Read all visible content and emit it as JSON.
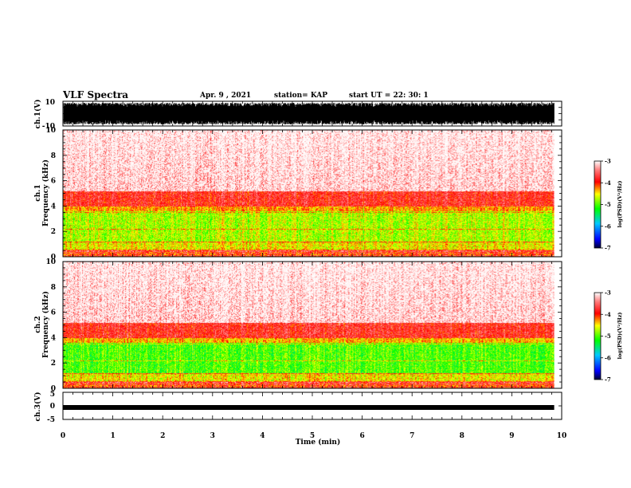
{
  "header": {
    "title": "VLF Spectra",
    "date": "Apr. 9  , 2021",
    "station": "station= KAP",
    "start": "start  UT  =    22: 30: 1"
  },
  "chart_data": [
    {
      "name": "ch1-waveform",
      "type": "line",
      "ylabel": "ch.1(V)",
      "ylim": [
        -10,
        10
      ],
      "yticks": [
        "10",
        "-10"
      ],
      "xlim": [
        0,
        10
      ]
    },
    {
      "name": "ch1-spectrogram",
      "type": "heatmap",
      "ylabel": "ch.1\nFrequency  (kHz)",
      "ylim": [
        0,
        10
      ],
      "yticks": [
        "0",
        "2",
        "4",
        "6",
        "8",
        "10"
      ],
      "xlim": [
        0,
        10
      ],
      "data_until_min": 9.85,
      "colorbar": {
        "label": "log(PSD)(V²/Hz)",
        "range": [
          -7,
          -3
        ],
        "ticks": [
          "-3",
          "-4",
          "-5",
          "-6",
          "-7"
        ]
      }
    },
    {
      "name": "ch2-spectrogram",
      "type": "heatmap",
      "ylabel": "ch.2\nFrequency  (kHz)",
      "ylim": [
        0,
        10
      ],
      "yticks": [
        "0",
        "2",
        "4",
        "6",
        "8",
        "10"
      ],
      "xlim": [
        0,
        10
      ],
      "data_until_min": 9.85,
      "colorbar": {
        "label": "log(PSD)(V²/Hz)",
        "range": [
          -7,
          -3
        ],
        "ticks": [
          "-3",
          "-4",
          "-5",
          "-6",
          "-7"
        ]
      }
    },
    {
      "name": "ch3-waveform",
      "type": "line",
      "ylabel": "ch.3(V)",
      "ylim": [
        -5,
        5
      ],
      "yticks": [
        "5",
        "0",
        "-5"
      ],
      "xlim": [
        0,
        10
      ],
      "xlabel": "Time  (min)",
      "xticks": [
        "0",
        "1",
        "2",
        "3",
        "4",
        "5",
        "6",
        "7",
        "8",
        "9",
        "10"
      ]
    }
  ]
}
